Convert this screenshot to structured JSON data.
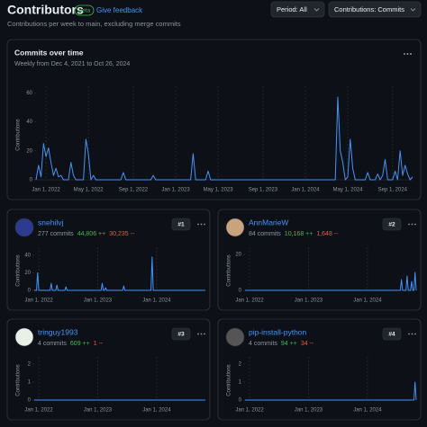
{
  "header": {
    "title": "Contributors",
    "badge": "Beta",
    "feedback": "Give feedback",
    "subtitle": "Contributions per week to main, excluding merge commits"
  },
  "controls": {
    "period": "Period: All",
    "contributions": "Contributions: Commits"
  },
  "chart_data": {
    "type": "line",
    "title": "Commits over time",
    "subtitle": "Weekly from Dec 4, 2021 to Oct 26, 2024",
    "y_label": "Contributions",
    "color": "#4493f8",
    "x": [
      0,
      1,
      2,
      3,
      4,
      5,
      6,
      7,
      8,
      9,
      10,
      11,
      13,
      14,
      15,
      16,
      19,
      20,
      21,
      22,
      23,
      24,
      34,
      35,
      36,
      46,
      47,
      48,
      62,
      63,
      64,
      68,
      69,
      70,
      120,
      121,
      122,
      123,
      124,
      125,
      126,
      127,
      128,
      132,
      133,
      134,
      136,
      137,
      138,
      139,
      140,
      141,
      143,
      144,
      145,
      146,
      147,
      148,
      149,
      150,
      151
    ],
    "values": [
      0,
      10,
      2,
      25,
      16,
      22,
      12,
      3,
      8,
      2,
      3,
      0,
      0,
      12,
      3,
      0,
      0,
      28,
      18,
      0,
      3,
      0,
      0,
      5,
      0,
      0,
      3,
      0,
      0,
      18,
      0,
      0,
      6,
      0,
      0,
      57,
      20,
      12,
      0,
      2,
      28,
      8,
      0,
      0,
      5,
      0,
      0,
      4,
      0,
      3,
      14,
      0,
      0,
      6,
      0,
      20,
      3,
      10,
      4,
      0,
      2
    ],
    "xlim": [
      0,
      151
    ],
    "xticks": [
      {
        "value": 4,
        "label": "Jan 1, 2022"
      },
      {
        "value": 21,
        "label": "May 1, 2022"
      },
      {
        "value": 39,
        "label": "Sep 1, 2022"
      },
      {
        "value": 56,
        "label": "Jan 1, 2023"
      },
      {
        "value": 73,
        "label": "May 1, 2023"
      },
      {
        "value": 91,
        "label": "Sep 1, 2023"
      },
      {
        "value": 108,
        "label": "Jan 1, 2024"
      },
      {
        "value": 125,
        "label": "May 1, 2024"
      },
      {
        "value": 143,
        "label": "Sep 1, 2024"
      }
    ],
    "ylim": [
      0,
      62
    ],
    "yticks": [
      0,
      20,
      40,
      60
    ]
  },
  "contributors": [
    {
      "name": "snehilvj",
      "commits": "277 commits",
      "additions": "44,806 ++",
      "deletions": "30,235 --",
      "rank": "#1",
      "chart_data": {
        "type": "line",
        "y_label": "Contributions",
        "color": "#4493f8",
        "x": [
          0,
          2,
          3,
          4,
          14,
          15,
          16,
          19,
          20,
          21,
          27,
          28,
          29,
          59,
          60,
          61,
          62,
          63,
          64,
          78,
          79,
          80,
          103,
          104,
          105,
          151
        ],
        "values": [
          0,
          0,
          20,
          0,
          0,
          8,
          0,
          0,
          6,
          0,
          0,
          4,
          0,
          0,
          8,
          0,
          0,
          3,
          0,
          0,
          5,
          0,
          0,
          38,
          0,
          0
        ],
        "xlim": [
          0,
          151
        ],
        "xticks": [
          {
            "value": 4,
            "label": "Jan 1, 2022"
          },
          {
            "value": 56,
            "label": "Jan 1, 2023"
          },
          {
            "value": 108,
            "label": "Jan 1, 2024"
          }
        ],
        "ylim": [
          0,
          45
        ],
        "yticks": [
          0,
          20,
          40
        ]
      }
    },
    {
      "name": "AnnMarieW",
      "commits": "84 commits",
      "additions": "10,168 ++",
      "deletions": "1,648 --",
      "rank": "#2",
      "chart_data": {
        "type": "line",
        "y_label": "Contributions",
        "color": "#4493f8",
        "x": [
          0,
          137,
          138,
          139,
          142,
          143,
          144,
          146,
          147,
          148,
          149,
          150,
          151
        ],
        "values": [
          0,
          0,
          6,
          0,
          0,
          8,
          0,
          0,
          5,
          0,
          0,
          10,
          0
        ],
        "xlim": [
          0,
          151
        ],
        "xticks": [
          {
            "value": 4,
            "label": "Jan 1, 2022"
          },
          {
            "value": 56,
            "label": "Jan 1, 2023"
          },
          {
            "value": 108,
            "label": "Jan 1, 2024"
          }
        ],
        "ylim": [
          0,
          22
        ],
        "yticks": [
          0,
          20
        ]
      }
    },
    {
      "name": "tringuy1993",
      "commits": "4 commits",
      "additions": "609 ++",
      "deletions": "1 --",
      "rank": "#3",
      "chart_data": {
        "type": "line",
        "y_label": "Contributions",
        "color": "#4493f8",
        "x": [
          0,
          151
        ],
        "values": [
          0,
          0
        ],
        "xlim": [
          0,
          151
        ],
        "xticks": [
          {
            "value": 4,
            "label": "Jan 1, 2022"
          },
          {
            "value": 56,
            "label": "Jan 1, 2023"
          },
          {
            "value": 108,
            "label": "Jan 1, 2024"
          }
        ],
        "ylim": [
          0,
          2.2
        ],
        "yticks": [
          0,
          1,
          2
        ]
      }
    },
    {
      "name": "pip-install-python",
      "commits": "4 commits",
      "additions": "94 ++",
      "deletions": "34 --",
      "rank": "#4",
      "chart_data": {
        "type": "line",
        "y_label": "Contributions",
        "color": "#4493f8",
        "x": [
          0,
          148,
          149,
          150,
          151
        ],
        "values": [
          0,
          0,
          0,
          1,
          0
        ],
        "xlim": [
          0,
          151
        ],
        "xticks": [
          {
            "value": 4,
            "label": "Jan 1, 2022"
          },
          {
            "value": 56,
            "label": "Jan 1, 2023"
          },
          {
            "value": 108,
            "label": "Jan 1, 2024"
          }
        ],
        "ylim": [
          0,
          2.2
        ],
        "yticks": [
          0,
          1,
          2
        ]
      }
    }
  ]
}
